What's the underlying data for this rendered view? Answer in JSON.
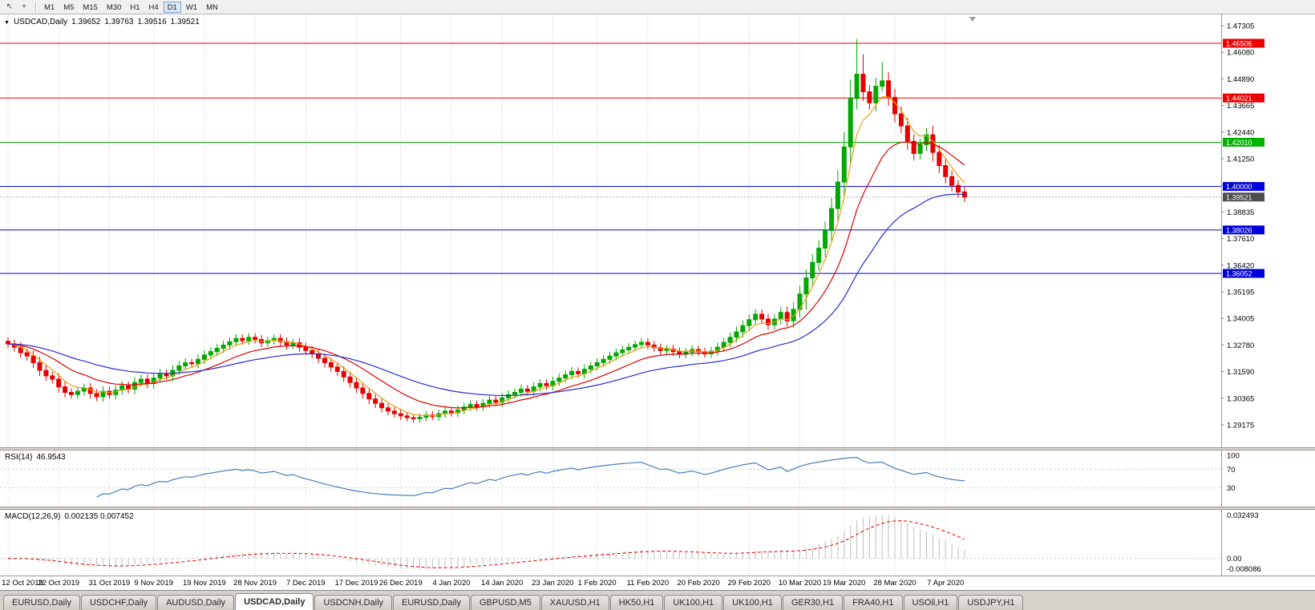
{
  "toolbar": {
    "icons": [
      {
        "name": "pointer-icon",
        "glyph": "↖"
      },
      {
        "name": "crosshair-icon",
        "glyph": "+"
      }
    ],
    "timeframes": [
      "M1",
      "M5",
      "M15",
      "M30",
      "H1",
      "H4",
      "D1",
      "W1",
      "MN"
    ],
    "active_timeframe": "D1"
  },
  "titlebar": {
    "dropdown_glyph": "▼",
    "symbol": "USDCAD,Daily",
    "open": "1.39652",
    "high": "1.39763",
    "low": "1.39516",
    "close": "1.39521"
  },
  "price_axis": {
    "labels": [
      "1.47305",
      "1.46080",
      "1.44890",
      "1.43665",
      "1.42440",
      "1.41250",
      "1.40025",
      "1.38835",
      "1.37610",
      "1.36420",
      "1.35195",
      "1.34005",
      "1.32780",
      "1.31590",
      "1.30365",
      "1.29175"
    ]
  },
  "rsi_panel": {
    "label": "RSI(14)",
    "value": "46.9543",
    "scale": [
      "100",
      "70",
      "30"
    ],
    "scale_values": [
      100,
      70,
      30
    ],
    "line_color": "#4a7ebb"
  },
  "macd_panel": {
    "label": "MACD(12,26,9)",
    "values": "0.002135 0.007452",
    "scale": [
      "0.032493",
      "0.00",
      "-0.008086"
    ],
    "histogram_color": "#bdbdbd",
    "signal_color": "#e00000"
  },
  "tabs": {
    "items": [
      "EURUSD,Daily",
      "USDCHF,Daily",
      "AUDUSD,Daily",
      "USDCAD,Daily",
      "USDCNH,Daily",
      "EURUSD,Daily",
      "GBPUSD,M5",
      "XAUUSD,H1",
      "HK50,H1",
      "UK100,H1",
      "UK100,H1",
      "GER30,H1",
      "FRA40,H1",
      "USOil,H1",
      "USDJPY,H1"
    ],
    "active_index": 3
  },
  "chart_data": {
    "type": "candlestick",
    "symbol": "USDCAD",
    "timeframe": "Daily",
    "ylim": [
      1.29175,
      1.47305
    ],
    "dates": [
      "12 Oct 2019",
      "22 Oct 2019",
      "31 Oct 2019",
      "9 Nov 2019",
      "19 Nov 2019",
      "28 Nov 2019",
      "7 Dec 2019",
      "17 Dec 2019",
      "26 Dec 2019",
      "4 Jan 2020",
      "14 Jan 2020",
      "23 Jan 2020",
      "1 Feb 2020",
      "11 Feb 2020",
      "20 Feb 2020",
      "29 Feb 2020",
      "10 Mar 2020",
      "19 Mar 2020",
      "28 Mar 2020",
      "7 Apr 2020"
    ],
    "closes": [
      1.3285,
      1.327,
      1.3245,
      1.323,
      1.32,
      1.3165,
      1.314,
      1.3125,
      1.309,
      1.3065,
      1.3055,
      1.307,
      1.3085,
      1.306,
      1.3045,
      1.307,
      1.3055,
      1.3075,
      1.3095,
      1.308,
      1.311,
      1.3125,
      1.3105,
      1.313,
      1.315,
      1.314,
      1.3165,
      1.3185,
      1.32,
      1.3195,
      1.3215,
      1.3235,
      1.325,
      1.3265,
      1.328,
      1.3295,
      1.331,
      1.33,
      1.3315,
      1.3305,
      1.329,
      1.33,
      1.331,
      1.3295,
      1.328,
      1.329,
      1.327,
      1.3255,
      1.324,
      1.322,
      1.32,
      1.318,
      1.316,
      1.3135,
      1.311,
      1.3085,
      1.306,
      1.3035,
      1.3015,
      1.2995,
      1.298,
      1.2968,
      1.2958,
      1.295,
      1.2945,
      1.2952,
      1.2962,
      1.2955,
      1.2968,
      1.298,
      1.2972,
      1.2985,
      1.2998,
      1.301,
      1.3,
      1.3015,
      1.303,
      1.302,
      1.304,
      1.3055,
      1.3065,
      1.308,
      1.307,
      1.309,
      1.3105,
      1.3095,
      1.3115,
      1.313,
      1.3145,
      1.316,
      1.315,
      1.317,
      1.3185,
      1.32,
      1.3215,
      1.323,
      1.3245,
      1.3258,
      1.327,
      1.3282,
      1.3292,
      1.328,
      1.3268,
      1.3255,
      1.3262,
      1.325,
      1.3238,
      1.3248,
      1.326,
      1.325,
      1.324,
      1.3252,
      1.327,
      1.3292,
      1.3315,
      1.334,
      1.3368,
      1.3395,
      1.342,
      1.3398,
      1.3372,
      1.3398,
      1.3428,
      1.339,
      1.3442,
      1.3512,
      1.3585,
      1.3655,
      1.372,
      1.38,
      1.39,
      1.402,
      1.418,
      1.44,
      1.451,
      1.443,
      1.438,
      1.4455,
      1.448,
      1.4405,
      1.433,
      1.4275,
      1.4205,
      1.415,
      1.419,
      1.4235,
      1.4155,
      1.4095,
      1.4045,
      1.4005,
      1.3975,
      1.3952
    ],
    "wick_overrides": {
      "high": {
        "134": 1.467,
        "135": 1.46,
        "138": 1.4565
      },
      "low": {
        "126": 1.344
      }
    },
    "hlines": [
      {
        "price": 1.46506,
        "label": "1.46506",
        "color": "#ee0000"
      },
      {
        "price": 1.44021,
        "label": "1.44021",
        "color": "#ee0000"
      },
      {
        "price": 1.4201,
        "label": "1.42010",
        "color": "#00b400"
      },
      {
        "price": 1.4,
        "label": "1.40000",
        "color": "#0000dd"
      },
      {
        "price": 1.38026,
        "label": "1.38026",
        "color": "#0000dd"
      },
      {
        "price": 1.36052,
        "label": "1.36052",
        "color": "#0000dd"
      }
    ],
    "current_price": {
      "value": 1.39521,
      "label": "1.39521",
      "tag_color": "#4d4d4d",
      "line_color": "#aaaaaa"
    },
    "candle_colors": {
      "up": "#00a800",
      "down": "#e60000"
    },
    "moving_averages": [
      {
        "name": "fast",
        "type": "EMA",
        "period": 5,
        "color": "#e8a013"
      },
      {
        "name": "mid",
        "type": "EMA",
        "period": 14,
        "color": "#dd0000"
      },
      {
        "name": "slow",
        "type": "EMA",
        "period": 34,
        "color": "#2b2bd4"
      }
    ],
    "rsi": {
      "period": 14,
      "current": 46.9543
    },
    "macd": {
      "fast": 12,
      "slow": 26,
      "signal": 9,
      "macd_value": 0.002135,
      "signal_value": 0.007452
    }
  }
}
